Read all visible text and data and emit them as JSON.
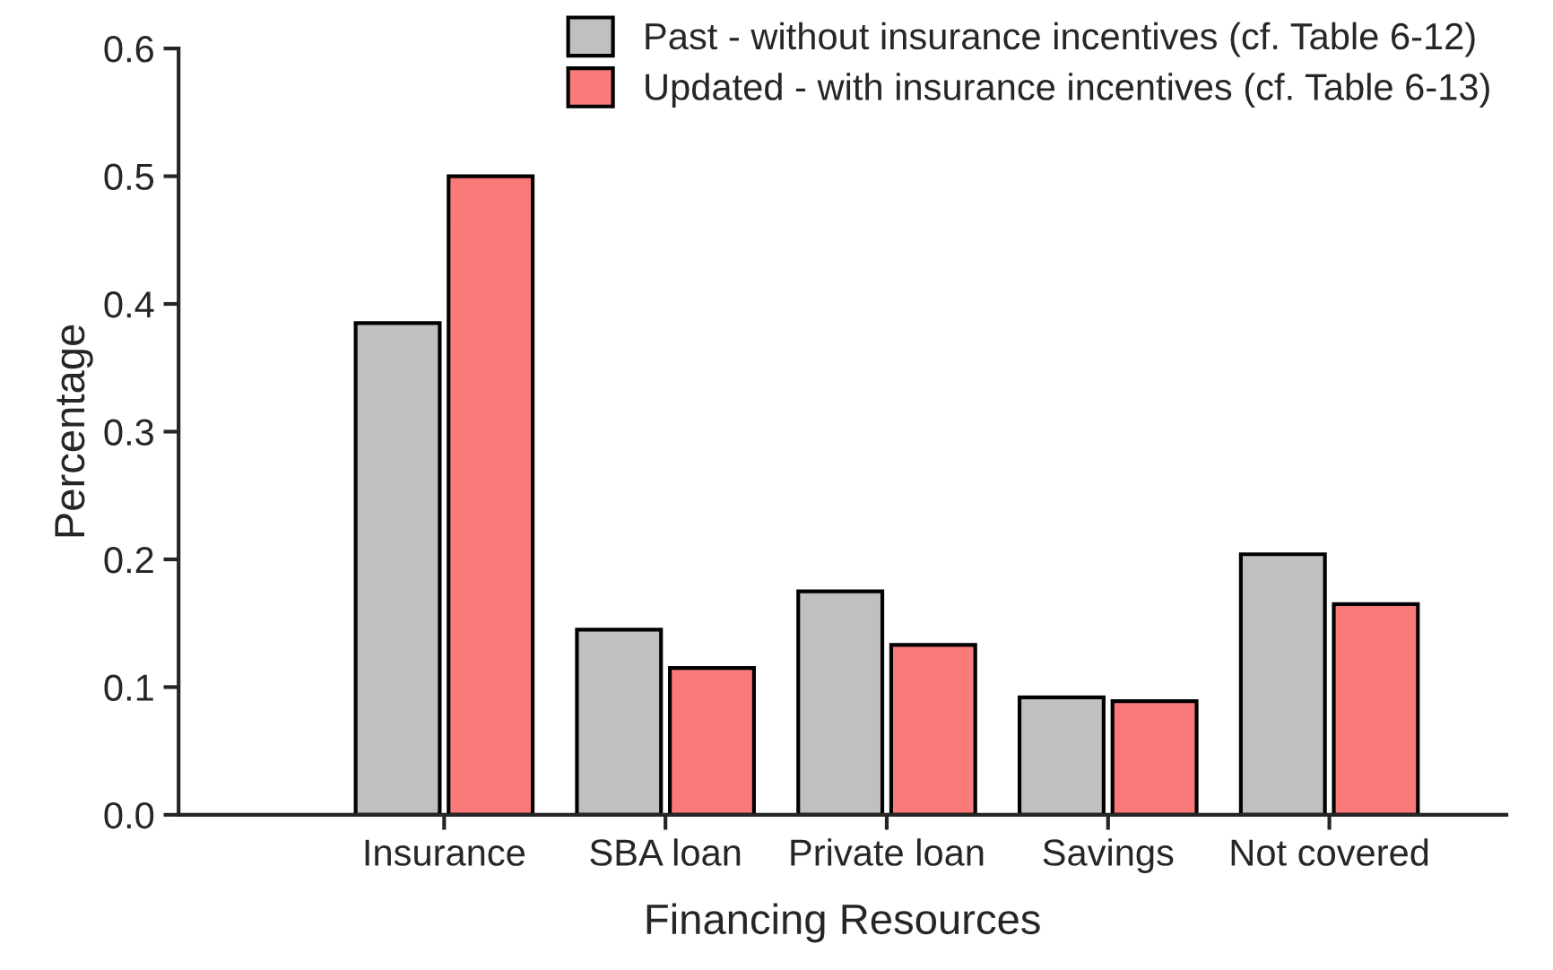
{
  "chart_data": {
    "type": "bar",
    "xlabel": "Financing Resources",
    "ylabel": "Percentage",
    "categories": [
      "Insurance",
      "SBA loan",
      "Private loan",
      "Savings",
      "Not covered"
    ],
    "series": [
      {
        "name": "Past - without insurance incentives (cf. Table 6-12)",
        "color": "#c0c0c0",
        "values": [
          0.385,
          0.145,
          0.175,
          0.092,
          0.204
        ]
      },
      {
        "name": "Updated - with insurance incentives (cf. Table 6-13)",
        "color": "#fa7a7a",
        "values": [
          0.5,
          0.115,
          0.133,
          0.089,
          0.165
        ]
      }
    ],
    "ylim": [
      0,
      0.6
    ],
    "yticks": [
      "0.0",
      0.1,
      0.2,
      0.3,
      0.4,
      0.5,
      0.6
    ],
    "grid": false,
    "legend": "top right"
  }
}
